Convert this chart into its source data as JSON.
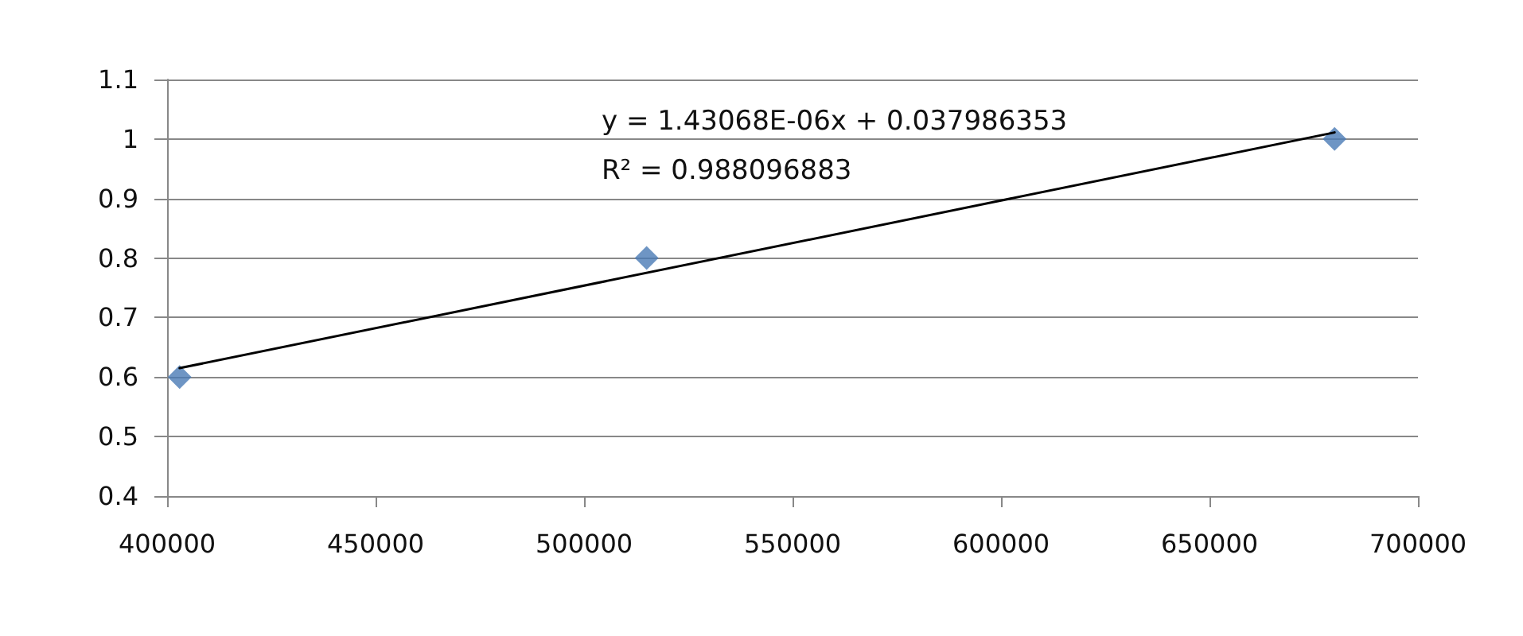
{
  "chart_data": {
    "type": "scatter",
    "marker": "diamond",
    "grid": "y",
    "xlim": [
      400000,
      700000
    ],
    "xticks": [
      400000,
      450000,
      500000,
      550000,
      600000,
      650000,
      700000
    ],
    "ylim": [
      0.4,
      1.1
    ],
    "yticks": [
      0.4,
      0.5,
      0.6,
      0.7,
      0.8,
      0.9,
      1,
      1.1
    ],
    "series": [
      {
        "color": "#4a7ab5",
        "x": [
          403000,
          515000,
          680000
        ],
        "values": [
          0.6,
          0.8,
          1.0
        ]
      },
      {
        "type": "line",
        "color": "#000000",
        "marker": "none",
        "x": [
          403000,
          680000
        ],
        "values": [
          0.615,
          1.011
        ]
      }
    ],
    "annotations": [
      "y = 1.43068E-06x + 0.037986353",
      "R² = 0.988096883"
    ]
  }
}
